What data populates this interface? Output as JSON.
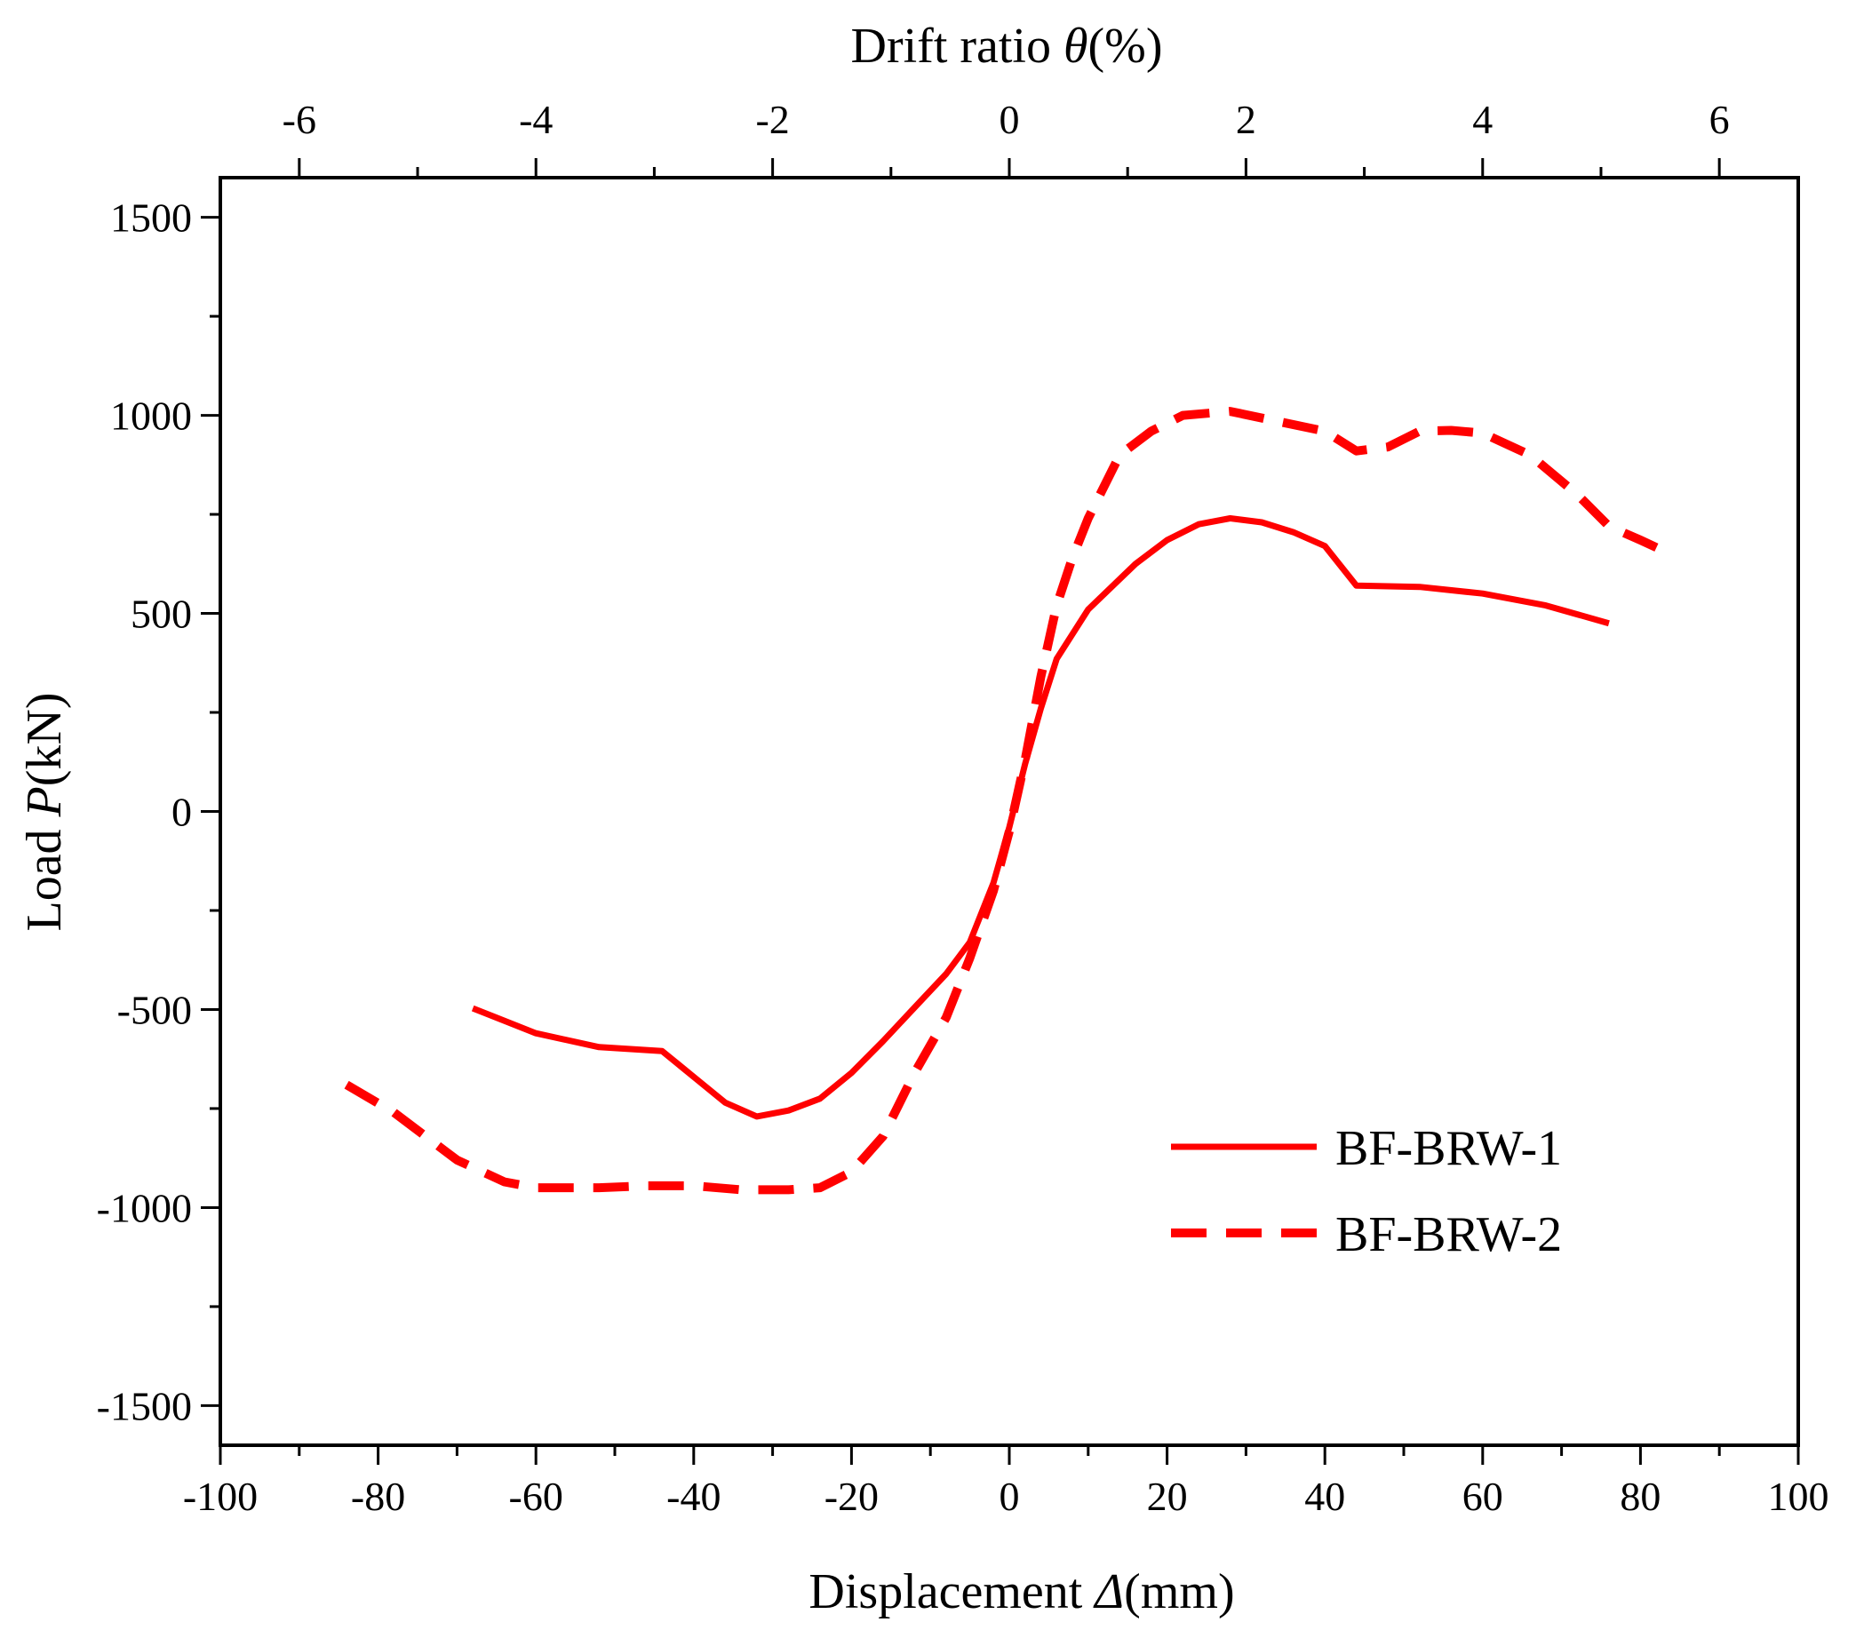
{
  "chart_data": {
    "type": "line",
    "title": "",
    "xlabel": "Displacement Δ(mm)",
    "xlabel_parts": {
      "prefix": "Displacement ",
      "symbol": "Δ",
      "suffix": "(mm)"
    },
    "ylabel": "Load P(kN)",
    "ylabel_parts": {
      "prefix": "Load ",
      "symbol": "P",
      "suffix": "(kN)"
    },
    "top_label": "Drift ratio θ(%)",
    "top_label_parts": {
      "prefix": "Drift ratio ",
      "symbol": "θ",
      "suffix": "(%)"
    },
    "xlim": [
      -100,
      100
    ],
    "ylim": [
      -1600,
      1600
    ],
    "top_lim": [
      -6.667,
      6.667
    ],
    "x_ticks": [
      -100,
      -80,
      -60,
      -40,
      -20,
      0,
      20,
      40,
      60,
      80,
      100
    ],
    "y_ticks": [
      -1500,
      -1000,
      -500,
      0,
      500,
      1000,
      1500
    ],
    "top_ticks": [
      -6,
      -4,
      -2,
      0,
      2,
      4,
      6
    ],
    "grid": false,
    "legend_position": "bottom-right",
    "line_color": "#ff0000",
    "series": [
      {
        "name": "BF-BRW-1",
        "style": "solid",
        "x": [
          -68,
          -60,
          -52,
          -44,
          -40,
          -36,
          -32,
          -28,
          -24,
          -20,
          -16,
          -12,
          -8,
          -5,
          -2,
          0,
          2,
          4,
          6,
          10,
          16,
          20,
          24,
          28,
          32,
          36,
          40,
          44,
          52,
          60,
          68,
          76
        ],
        "y": [
          -497,
          -560,
          -595,
          -605,
          -670,
          -735,
          -770,
          -755,
          -725,
          -660,
          -580,
          -495,
          -410,
          -330,
          -180,
          -40,
          120,
          260,
          385,
          510,
          625,
          685,
          725,
          740,
          730,
          705,
          670,
          570,
          567,
          550,
          520,
          475
        ]
      },
      {
        "name": "BF-BRW-2",
        "style": "dashed",
        "x": [
          -84,
          -78,
          -70,
          -64,
          -60,
          -52,
          -46,
          -40,
          -34,
          -28,
          -24,
          -20,
          -16,
          -12,
          -8,
          -5,
          -2,
          0,
          2,
          4,
          6,
          8,
          10,
          14,
          18,
          22,
          28,
          34,
          40,
          44,
          48,
          52,
          56,
          60,
          66,
          72,
          76,
          80,
          84
        ],
        "y": [
          -690,
          -760,
          -880,
          -935,
          -950,
          -950,
          -945,
          -945,
          -955,
          -955,
          -950,
          -910,
          -820,
          -660,
          -520,
          -370,
          -200,
          -50,
          130,
          340,
          520,
          640,
          740,
          900,
          960,
          1000,
          1010,
          985,
          960,
          910,
          920,
          960,
          962,
          955,
          900,
          800,
          720,
          685,
          648
        ]
      }
    ]
  }
}
